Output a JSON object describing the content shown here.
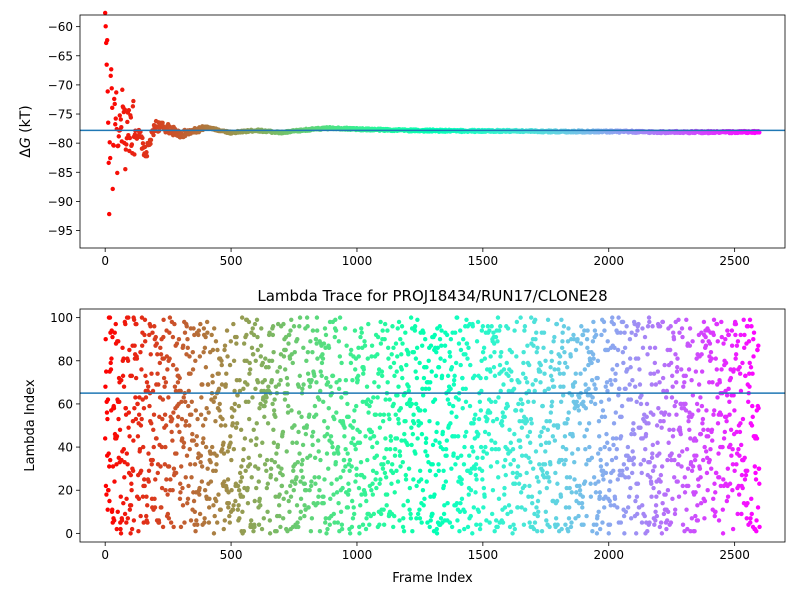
{
  "chart_data": [
    {
      "type": "scatter",
      "title": "",
      "xlabel": "",
      "ylabel_prefix": "Δ",
      "ylabel_italic": "G",
      "ylabel_suffix": " (kT)",
      "xlim": [
        -100,
        2700
      ],
      "ylim": [
        -98,
        -58
      ],
      "xticks": [
        0,
        500,
        1000,
        1500,
        2000,
        2500
      ],
      "yticks": [
        -60,
        -65,
        -70,
        -75,
        -80,
        -85,
        -90,
        -95
      ],
      "grid": false,
      "legend": "none",
      "n_points": 2600,
      "colormap": "rainbow",
      "reference_line": {
        "y": -77.8,
        "color": "#1f77b4"
      },
      "series_description": "free energy estimate per frame; scatters widely (about -95 to -60) over the first ~100 frames, settles to about -78 to -79 by frame ~300, then stays nearly constant near -78.2 to the end",
      "sample_points": {
        "x": [
          5,
          10,
          15,
          20,
          25,
          30,
          35,
          40,
          45,
          50,
          60,
          70,
          80,
          100,
          120,
          140,
          160,
          200,
          250,
          300,
          350,
          400,
          500,
          600,
          700,
          800,
          900,
          1000,
          1200,
          1400,
          1600,
          1800,
          2000,
          2200,
          2400,
          2600
        ],
        "y": [
          -60,
          -70,
          -90,
          -80,
          -63,
          -85,
          -75,
          -73,
          -77,
          -83,
          -79,
          -75,
          -80,
          -76,
          -78,
          -79,
          -82,
          -77,
          -77.5,
          -78.5,
          -78,
          -77.3,
          -78.2,
          -77.8,
          -78.2,
          -77.7,
          -77.4,
          -77.6,
          -77.8,
          -77.9,
          -77.9,
          -78.0,
          -78.0,
          -78.1,
          -78.1,
          -78.1
        ]
      }
    },
    {
      "type": "scatter",
      "title": "Lambda Trace for PROJ18434/RUN17/CLONE28",
      "xlabel": "Frame Index",
      "ylabel": "Lambda Index",
      "xlim": [
        -100,
        2700
      ],
      "ylim": [
        -4,
        104
      ],
      "xticks": [
        0,
        500,
        1000,
        1500,
        2000,
        2500
      ],
      "yticks": [
        0,
        20,
        40,
        60,
        80,
        100
      ],
      "grid": false,
      "legend": "none",
      "n_points": 2600,
      "colormap": "rainbow",
      "reference_line": {
        "y": 65,
        "color": "#1f77b4"
      },
      "series_description": "one lambda index (integer 0-100) per frame, visited roughly uniformly across the whole range for every frame"
    }
  ]
}
